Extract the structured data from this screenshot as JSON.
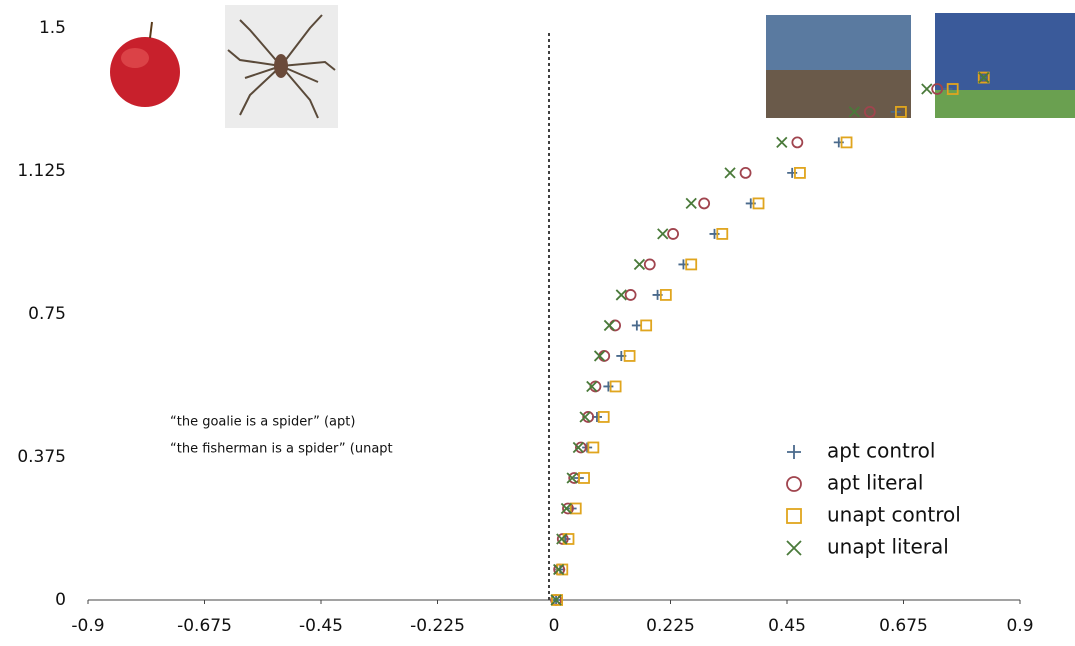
{
  "chart_data": {
    "type": "scatter",
    "annotations": [
      "“the goalie is a spider” (apt)",
      "“the fisherman is a spider” (unapt"
    ],
    "xlim": [
      -0.9,
      0.9
    ],
    "ylim": [
      0,
      1.5
    ],
    "xticks": [
      -0.9,
      -0.675,
      -0.45,
      -0.225,
      0,
      0.225,
      0.45,
      0.675,
      0.9
    ],
    "yticks": [
      0,
      0.375,
      0.75,
      1.125,
      1.5
    ],
    "legend": "lower right",
    "series": [
      {
        "name": "apt control",
        "color": "#4a6a8c",
        "marker": "plus",
        "x": [
          0.004,
          0.012,
          0.022,
          0.034,
          0.048,
          0.064,
          0.083,
          0.105,
          0.13,
          0.16,
          0.2,
          0.25,
          0.31,
          0.38,
          0.46,
          0.55,
          0.66,
          0.76,
          0.83
        ],
        "values": [
          0,
          0.08,
          0.16,
          0.24,
          0.32,
          0.4,
          0.48,
          0.56,
          0.64,
          0.72,
          0.8,
          0.88,
          0.96,
          1.04,
          1.12,
          1.2,
          1.28,
          1.34,
          1.37
        ]
      },
      {
        "name": "apt literal",
        "color": "#a0444e",
        "marker": "circle",
        "x": [
          0.004,
          0.01,
          0.017,
          0.027,
          0.039,
          0.052,
          0.066,
          0.08,
          0.097,
          0.118,
          0.148,
          0.185,
          0.23,
          0.29,
          0.37,
          0.47,
          0.61,
          0.74,
          0.83
        ],
        "values": [
          0,
          0.08,
          0.16,
          0.24,
          0.32,
          0.4,
          0.48,
          0.56,
          0.64,
          0.72,
          0.8,
          0.88,
          0.96,
          1.04,
          1.12,
          1.2,
          1.28,
          1.34,
          1.37
        ]
      },
      {
        "name": "unapt control",
        "color": "#e0a51e",
        "marker": "square",
        "x": [
          0.006,
          0.016,
          0.028,
          0.042,
          0.058,
          0.076,
          0.096,
          0.119,
          0.146,
          0.178,
          0.216,
          0.265,
          0.325,
          0.395,
          0.475,
          0.565,
          0.67,
          0.77,
          0.83
        ],
        "values": [
          0,
          0.08,
          0.16,
          0.24,
          0.32,
          0.4,
          0.48,
          0.56,
          0.64,
          0.72,
          0.8,
          0.88,
          0.96,
          1.04,
          1.12,
          1.2,
          1.28,
          1.34,
          1.37
        ]
      },
      {
        "name": "unapt literal",
        "color": "#4a7a3a",
        "marker": "cross",
        "x": [
          0.004,
          0.009,
          0.015,
          0.024,
          0.035,
          0.047,
          0.06,
          0.073,
          0.088,
          0.107,
          0.13,
          0.165,
          0.21,
          0.265,
          0.34,
          0.44,
          0.58,
          0.72,
          0.83
        ],
        "values": [
          0,
          0.08,
          0.16,
          0.24,
          0.32,
          0.4,
          0.48,
          0.56,
          0.64,
          0.72,
          0.8,
          0.88,
          0.96,
          1.04,
          1.12,
          1.2,
          1.28,
          1.34,
          1.37
        ]
      }
    ]
  }
}
